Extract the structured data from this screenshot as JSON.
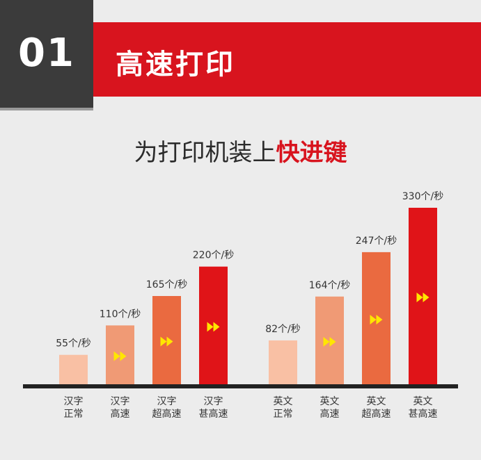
{
  "header": {
    "number": "01",
    "title": "高速打印"
  },
  "subtitle": {
    "text": "为打印机装上",
    "highlight": "快进键"
  },
  "chart_data": {
    "type": "bar",
    "unit_suffix": "个/秒",
    "groups": [
      {
        "categories": [
          "汉字\n正常",
          "汉字\n高速",
          "汉字\n超高速",
          "汉字\n甚高速"
        ],
        "values": [
          55,
          110,
          165,
          220
        ],
        "value_labels": [
          "55个/秒",
          "110个/秒",
          "165个/秒",
          "220个/秒"
        ]
      },
      {
        "categories": [
          "英文\n正常",
          "英文\n高速",
          "英文\n超高速",
          "英文\n甚高速"
        ],
        "values": [
          82,
          164,
          247,
          330
        ],
        "value_labels": [
          "82个/秒",
          "164个/秒",
          "247个/秒",
          "330个/秒"
        ]
      }
    ],
    "bar_colors": [
      "#f9c0a4",
      "#f09a75",
      "#ea6a40",
      "#e01418"
    ],
    "arrow_color": "#ffe600",
    "baseline_color": "#222222",
    "grid": false,
    "legend": "none"
  }
}
